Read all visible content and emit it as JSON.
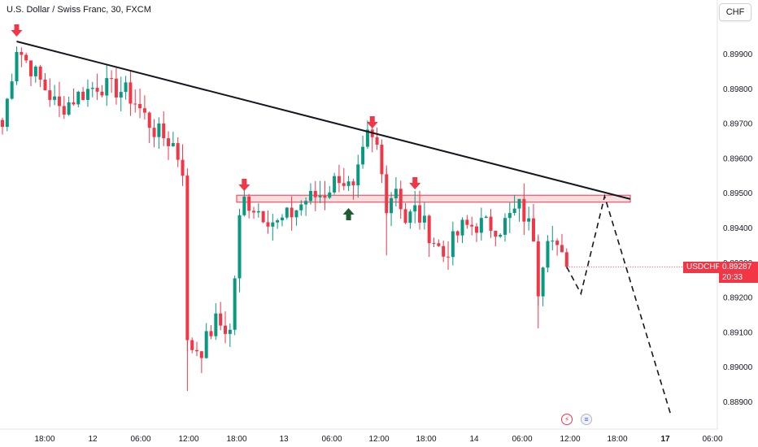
{
  "header": {
    "title": "U.S. Dollar / Swiss Franc, 30, FXCM",
    "currency_button": "CHF"
  },
  "price_marker": {
    "symbol": "USDCHF",
    "price": "0.89287",
    "countdown": "20:33"
  },
  "icons": {
    "event_1": "lightning-bolt-icon",
    "event_2": "us-flag-icon"
  },
  "colors": {
    "up": "#089981",
    "down": "#f23645",
    "trendline": "#131722",
    "zone_fill": "#f7c6cb",
    "zone_border": "#f23645",
    "arrow_up": "#1e5e2e"
  },
  "chart_data": {
    "type": "candlestick",
    "title": "U.S. Dollar / Swiss Franc, 30, FXCM",
    "ylim": [
      0.8885,
      0.8999
    ],
    "y_ticks": [
      "0.88900",
      "0.89000",
      "0.89100",
      "0.89200",
      "0.89300",
      "0.89400",
      "0.89500",
      "0.89600",
      "0.89700",
      "0.89800",
      "0.89900"
    ],
    "x_ticks": [
      "18:00",
      "12",
      "06:00",
      "12:00",
      "18:00",
      "13",
      "06:00",
      "12:00",
      "18:00",
      "14",
      "06:00",
      "12:00",
      "18:00",
      "17",
      "06:00"
    ],
    "anchors": [
      {
        "i": 0,
        "p": 0.8969
      },
      {
        "i": 3,
        "p": 0.8992
      },
      {
        "i": 8,
        "p": 0.8982
      },
      {
        "i": 12,
        "p": 0.8974
      },
      {
        "i": 16,
        "p": 0.8978
      },
      {
        "i": 20,
        "p": 0.8981
      },
      {
        "i": 26,
        "p": 0.8979
      },
      {
        "i": 28,
        "p": 0.8976
      },
      {
        "i": 32,
        "p": 0.8968
      },
      {
        "i": 36,
        "p": 0.8964
      },
      {
        "i": 38,
        "p": 0.8957
      },
      {
        "i": 39,
        "p": 0.8906
      },
      {
        "i": 42,
        "p": 0.8905
      },
      {
        "i": 45,
        "p": 0.8913
      },
      {
        "i": 48,
        "p": 0.891
      },
      {
        "i": 50,
        "p": 0.8942
      },
      {
        "i": 51,
        "p": 0.8948
      },
      {
        "i": 55,
        "p": 0.8944
      },
      {
        "i": 58,
        "p": 0.8941
      },
      {
        "i": 61,
        "p": 0.8944
      },
      {
        "i": 64,
        "p": 0.8948
      },
      {
        "i": 68,
        "p": 0.895
      },
      {
        "i": 71,
        "p": 0.8955
      },
      {
        "i": 74,
        "p": 0.895
      },
      {
        "i": 77,
        "p": 0.8966
      },
      {
        "i": 79,
        "p": 0.8963
      },
      {
        "i": 81,
        "p": 0.8947
      },
      {
        "i": 83,
        "p": 0.8952
      },
      {
        "i": 85,
        "p": 0.8942
      },
      {
        "i": 87,
        "p": 0.8945
      },
      {
        "i": 93,
        "p": 0.8932
      },
      {
        "i": 97,
        "p": 0.894
      },
      {
        "i": 101,
        "p": 0.8941
      },
      {
        "i": 105,
        "p": 0.894
      },
      {
        "i": 109,
        "p": 0.8946
      },
      {
        "i": 112,
        "p": 0.8938
      },
      {
        "i": 113,
        "p": 0.8923
      },
      {
        "i": 115,
        "p": 0.8939
      },
      {
        "i": 117,
        "p": 0.8933
      },
      {
        "i": 119,
        "p": 0.89287
      }
    ],
    "trendline": [
      {
        "x": "2025-06-11 17:00",
        "y": 0.89935
      },
      {
        "x": "2025-06-16 19:00",
        "y": 0.89482
      }
    ],
    "resistance_zone": [
      0.89473,
      0.89493
    ],
    "sell_markers": [
      3,
      51,
      78,
      87
    ],
    "buy_marker": 73,
    "projection": [
      [
        119,
        0.89287
      ],
      [
        122,
        0.8921
      ],
      [
        127,
        0.8949
      ],
      [
        141,
        0.8886
      ]
    ],
    "last_price": 0.89287
  }
}
